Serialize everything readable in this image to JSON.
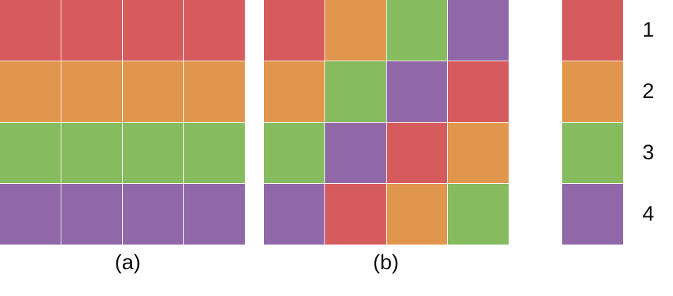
{
  "colors": {
    "1": "#d65b5d",
    "2": "#e1964e",
    "3": "#86bc5e",
    "4": "#9068a8"
  },
  "panel_a": {
    "caption": "(a)",
    "grid": [
      [
        1,
        1,
        1,
        1
      ],
      [
        2,
        2,
        2,
        2
      ],
      [
        3,
        3,
        3,
        3
      ],
      [
        4,
        4,
        4,
        4
      ]
    ]
  },
  "panel_b": {
    "caption": "(b)",
    "grid": [
      [
        1,
        2,
        3,
        4
      ],
      [
        2,
        3,
        4,
        1
      ],
      [
        3,
        4,
        1,
        2
      ],
      [
        4,
        1,
        2,
        3
      ]
    ]
  },
  "legend": [
    {
      "key": "1",
      "label": "1"
    },
    {
      "key": "2",
      "label": "2"
    },
    {
      "key": "3",
      "label": "3"
    },
    {
      "key": "4",
      "label": "4"
    }
  ]
}
